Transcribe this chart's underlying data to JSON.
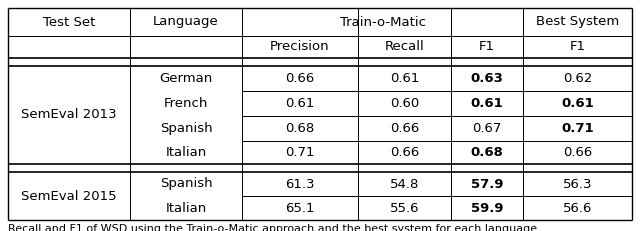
{
  "header_row1": [
    "Test Set",
    "Language",
    "Train-o-Matic",
    "Best System"
  ],
  "header_row2": [
    "Precision",
    "Recall",
    "F1",
    "F1"
  ],
  "sections": [
    {
      "test_set": "SemEval 2013",
      "langs": [
        "German",
        "French",
        "Spanish",
        "Italian"
      ],
      "rows": [
        {
          "precision": "0.66",
          "recall": "0.61",
          "f1": "0.63",
          "f1_bold": true,
          "best_f1": "0.62",
          "best_bold": false
        },
        {
          "precision": "0.61",
          "recall": "0.60",
          "f1": "0.61",
          "f1_bold": true,
          "best_f1": "0.61",
          "best_bold": true
        },
        {
          "precision": "0.68",
          "recall": "0.66",
          "f1": "0.67",
          "f1_bold": false,
          "best_f1": "0.71",
          "best_bold": true
        },
        {
          "precision": "0.71",
          "recall": "0.66",
          "f1": "0.68",
          "f1_bold": true,
          "best_f1": "0.66",
          "best_bold": false
        }
      ]
    },
    {
      "test_set": "SemEval 2015",
      "langs": [
        "Spanish",
        "Italian"
      ],
      "rows": [
        {
          "precision": "61.3",
          "recall": "54.8",
          "f1": "57.9",
          "f1_bold": true,
          "best_f1": "56.3",
          "best_bold": false
        },
        {
          "precision": "65.1",
          "recall": "55.6",
          "f1": "59.9",
          "f1_bold": true,
          "best_f1": "56.6",
          "best_bold": false
        }
      ]
    }
  ],
  "font_size": 9.5,
  "caption_font_size": 8.0,
  "bg_color": "#ffffff",
  "caption": "Recall and F1 of WSD using the Train-o-Matic approach and the best system for each language."
}
